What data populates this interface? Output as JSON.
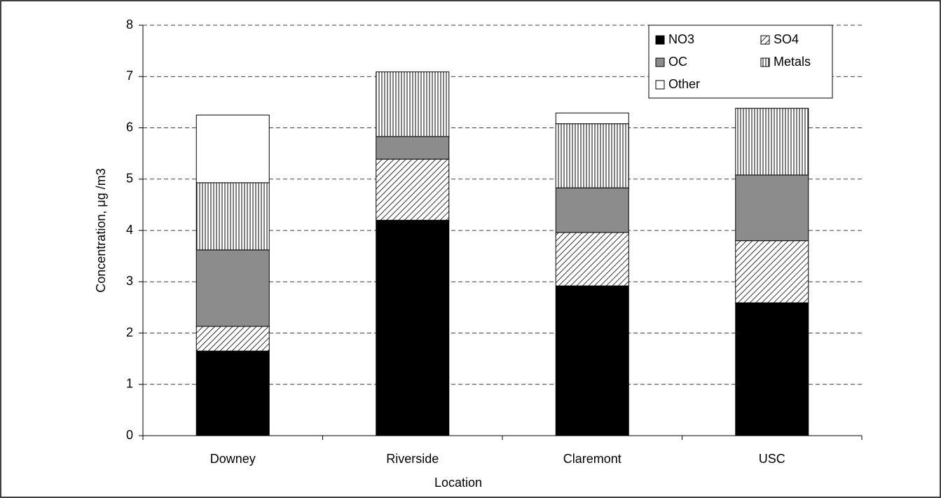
{
  "chart_data": {
    "type": "stacked_bar",
    "x_label": "Location",
    "y_label": "Concentration, μg /m3",
    "categories": [
      "Downey",
      "Riverside",
      "Claremont",
      "USC"
    ],
    "series": [
      {
        "name": "NO3",
        "color": "#000000",
        "pattern": "solid",
        "values": [
          1.65,
          4.2,
          2.92,
          2.59
        ]
      },
      {
        "name": "SO4",
        "color": "#000000",
        "pattern": "diagonal",
        "values": [
          0.48,
          1.19,
          1.04,
          1.21
        ]
      },
      {
        "name": "OC",
        "color": "#8c8c8c",
        "pattern": "solid",
        "values": [
          1.49,
          0.44,
          0.87,
          1.28
        ]
      },
      {
        "name": "Metals",
        "color": "#000000",
        "pattern": "vertical",
        "values": [
          1.31,
          1.26,
          1.25,
          1.3
        ]
      },
      {
        "name": "Other",
        "color": "#ffffff",
        "pattern": "solid",
        "values": [
          1.32,
          0,
          0.21,
          0
        ]
      }
    ],
    "ylim": [
      0,
      8
    ],
    "yticks": [
      0,
      1,
      2,
      3,
      4,
      5,
      6,
      7,
      8
    ],
    "grid": true,
    "legend": "top-right"
  }
}
